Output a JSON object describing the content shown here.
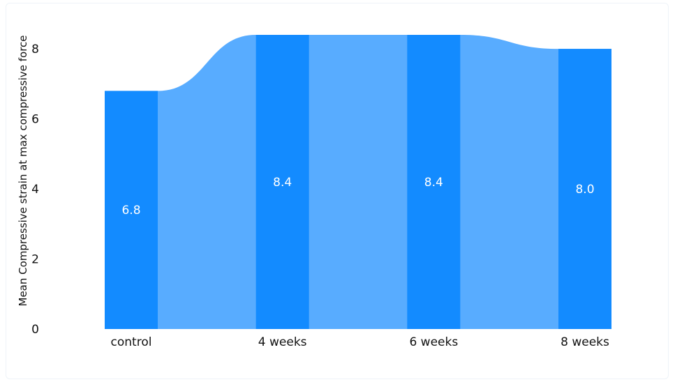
{
  "chart_data": {
    "type": "bar",
    "categories": [
      "control",
      "4 weeks",
      "6 weeks",
      "8 weeks"
    ],
    "values": [
      6.8,
      8.4,
      8.4,
      8.0
    ],
    "data_labels": [
      "6.8",
      "8.4",
      "8.4",
      "8.0"
    ],
    "title": "",
    "xlabel": "",
    "ylabel": "Mean Compressive strain at max compressive force",
    "ylim": [
      0,
      8.6
    ],
    "yticks": [
      0,
      2,
      4,
      6,
      8
    ],
    "grid": false,
    "legend": "none",
    "colors": {
      "bar": "#138bff",
      "flow": "#58acff",
      "text": "#111111",
      "label": "#ffffff"
    }
  }
}
